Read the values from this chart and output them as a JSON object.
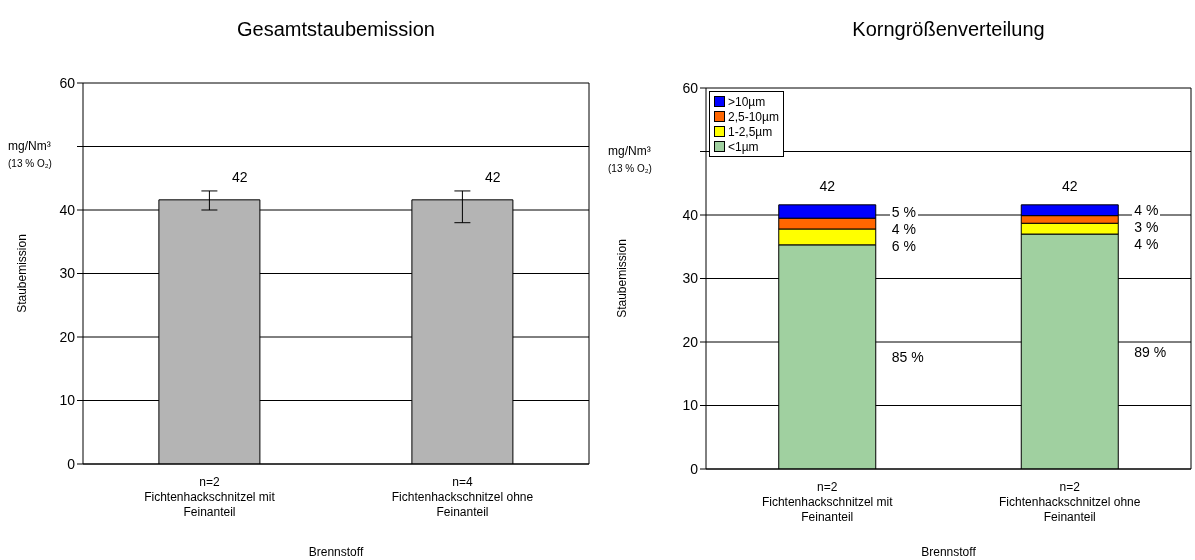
{
  "chart_data": [
    {
      "type": "bar",
      "title": "Gesamtstaubemission",
      "xlabel": "Brennstoff",
      "ylabel": "Staubemission",
      "annotations": [
        "mg/Nm³ (13 % O₂)"
      ],
      "categories": [
        "n=2\nFichtenhackschnitzel mit\nFeinanteil",
        "n=4\nFichtenhackschnitzel ohne\nFeinanteil"
      ],
      "values": [
        41.6,
        41.6
      ],
      "errors": [
        [
          40,
          43
        ],
        [
          38,
          43
        ]
      ],
      "value_labels": [
        "42",
        "42"
      ],
      "color": "#b4b4b4",
      "ylim": [
        0,
        60
      ],
      "yticks": [
        0,
        10,
        20,
        30,
        40,
        {
          "value": 50,
          "label": null
        },
        60
      ],
      "grid": "y"
    },
    {
      "type": "bar",
      "stacked": true,
      "title": "Korngrößenverteilung",
      "xlabel": "Brennstoff",
      "ylabel": "Staubemission",
      "annotations": [
        "mg/Nm³ (13 % O₂)",
        "5 %",
        "4 %",
        "6 %",
        "85 %",
        "4 %",
        "3 %",
        "4 %",
        "89 %"
      ],
      "categories": [
        "n=2\nFichtenhackschnitzel mit\nFeinanteil",
        "n=2\nFichtenhackschnitzel ohne\nFeinanteil"
      ],
      "series": [
        {
          "name": "<1µm",
          "color": "#a0d0a0",
          "values": [
            35.3,
            37.0
          ]
        },
        {
          "name": "1-2,5µm",
          "color": "#ffff00",
          "values": [
            2.5,
            1.7
          ]
        },
        {
          "name": "2,5-10µm",
          "color": "#ff6600",
          "values": [
            1.7,
            1.2
          ]
        },
        {
          "name": ">10µm",
          "color": "#0000ff",
          "values": [
            2.1,
            1.7
          ]
        }
      ],
      "totals": [
        "42",
        "42"
      ],
      "legend": "top left",
      "ylim": [
        0,
        60
      ],
      "yticks": [
        0,
        10,
        20,
        30,
        40,
        {
          "value": 50,
          "label": null
        },
        60
      ],
      "grid": "y"
    }
  ]
}
